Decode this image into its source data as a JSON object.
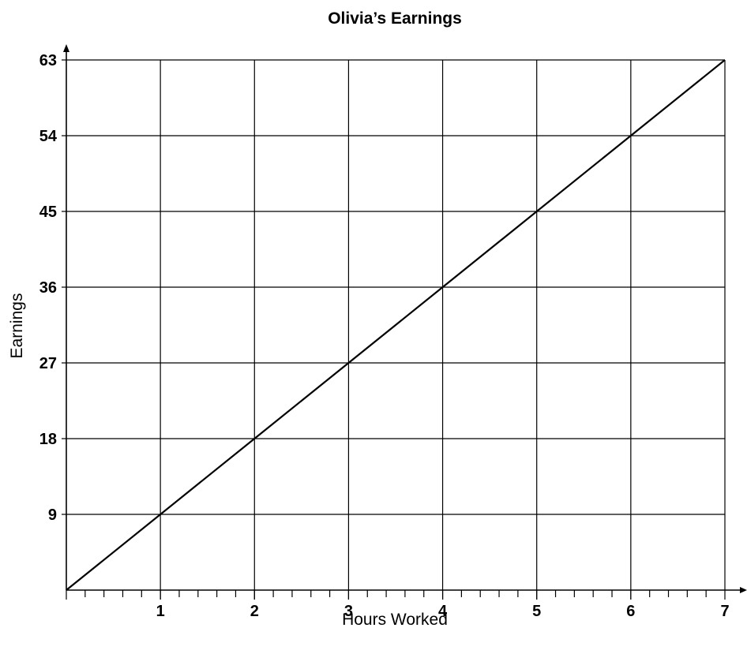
{
  "chart_data": {
    "type": "line",
    "title": "Olivia’s Earnings",
    "xlabel": "Hours Worked",
    "ylabel": "Earnings",
    "xlim": [
      0,
      7
    ],
    "ylim": [
      0,
      63
    ],
    "x_ticks": [
      1,
      2,
      3,
      4,
      5,
      6,
      7
    ],
    "y_ticks": [
      9,
      18,
      27,
      36,
      45,
      54,
      63
    ],
    "x_minor_ticks_per_unit": 5,
    "grid": true,
    "series": [
      {
        "x": [
          0,
          1,
          2,
          3,
          4,
          5,
          6,
          7
        ],
        "values": [
          0,
          9,
          18,
          27,
          36,
          45,
          54,
          63
        ]
      }
    ]
  }
}
